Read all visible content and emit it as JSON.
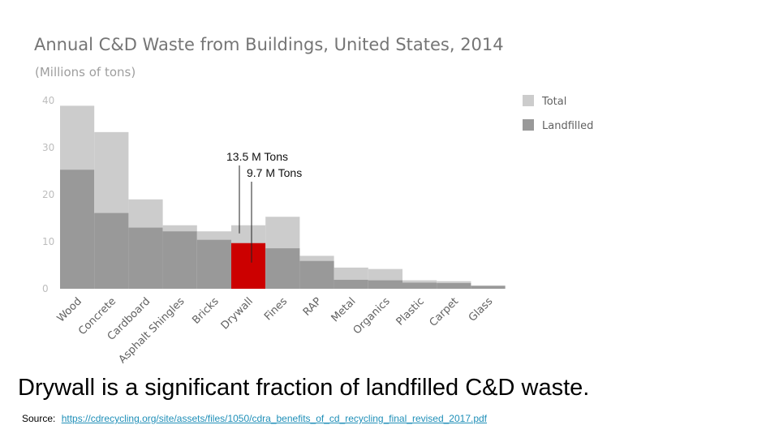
{
  "chart_data": {
    "type": "bar",
    "title": "Annual C&D Waste from Buildings, United States, 2014",
    "subtitle": "(Millions of tons)",
    "categories": [
      "Wood",
      "Concrete",
      "Cardboard",
      "Asphalt Shingles",
      "Bricks",
      "Drywall",
      "Fines",
      "RAP",
      "Metal",
      "Organics",
      "Plastic",
      "Carpet",
      "Glass"
    ],
    "series": [
      {
        "name": "Total",
        "color": "#cccccc",
        "values": [
          38.9,
          33.3,
          19.0,
          13.5,
          12.2,
          13.5,
          15.3,
          7.0,
          4.5,
          4.2,
          1.8,
          1.6,
          0.7
        ]
      },
      {
        "name": "Landfilled",
        "color": "#999999",
        "values": [
          25.3,
          16.1,
          13.0,
          12.2,
          10.4,
          9.7,
          8.6,
          5.9,
          1.9,
          1.8,
          1.3,
          1.2,
          0.6
        ]
      }
    ],
    "highlight": {
      "category": "Drywall",
      "series": "Landfilled",
      "color": "#cc0000"
    },
    "yticks": [
      "0",
      "10",
      "20",
      "30",
      "40"
    ],
    "ylim": [
      0,
      40
    ],
    "grid": false,
    "legend_position": "right",
    "annotations": [
      {
        "text": "13.5 M Tons",
        "target": "Total"
      },
      {
        "text": "9.7 M Tons",
        "target": "Landfilled"
      }
    ]
  },
  "caption": "Drywall is a significant fraction of landfilled C&D waste.",
  "source": {
    "label": "Source:",
    "url": "https://cdrecycling.org/site/assets/files/1050/cdra_benefits_of_cd_recycling_final_revised_2017.pdf"
  }
}
